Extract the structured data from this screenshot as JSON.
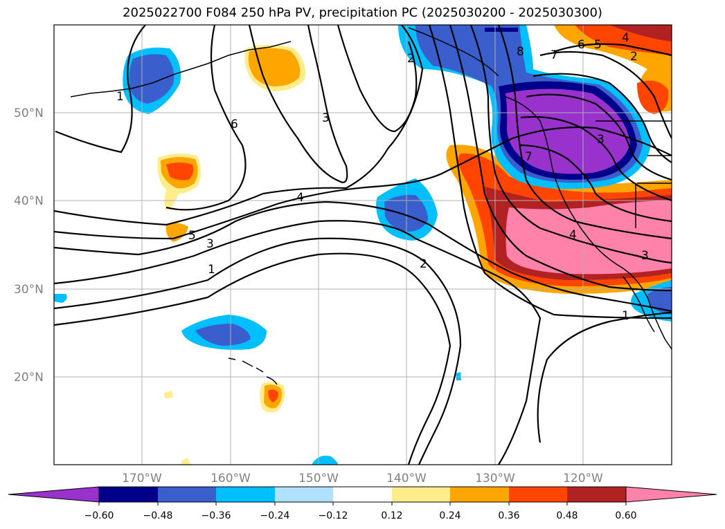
{
  "title": "2025022700 F084 250 hPa PV, precipitation PC (2025030200 - 2025030300)",
  "map": {
    "lon_range": [
      -180,
      -110
    ],
    "lat_range": [
      10,
      60
    ],
    "lat_labels": [
      "50°N",
      "40°N",
      "30°N",
      "20°N"
    ],
    "lon_labels": [
      "170°W",
      "160°W",
      "150°W",
      "140°W",
      "130°W",
      "120°W"
    ],
    "contour_labels": [
      "6",
      "3",
      "4",
      "5",
      "3",
      "1",
      "2",
      "7",
      "2",
      "8",
      "7",
      "6",
      "5",
      "4",
      "2",
      "3",
      "4",
      "3",
      "1",
      "1"
    ]
  },
  "colorbar": {
    "tick_labels": [
      "−0.60",
      "−0.48",
      "−0.36",
      "−0.24",
      "−0.12",
      "0.12",
      "0.24",
      "0.36",
      "0.48",
      "0.60"
    ],
    "colors": [
      "#9932cc",
      "#00008b",
      "#3a5fcd",
      "#00bfff",
      "#b0e2ff",
      "#ffffff",
      "#ffec8b",
      "#ffa500",
      "#ff4500",
      "#b22222",
      "#ff82ab"
    ]
  }
}
